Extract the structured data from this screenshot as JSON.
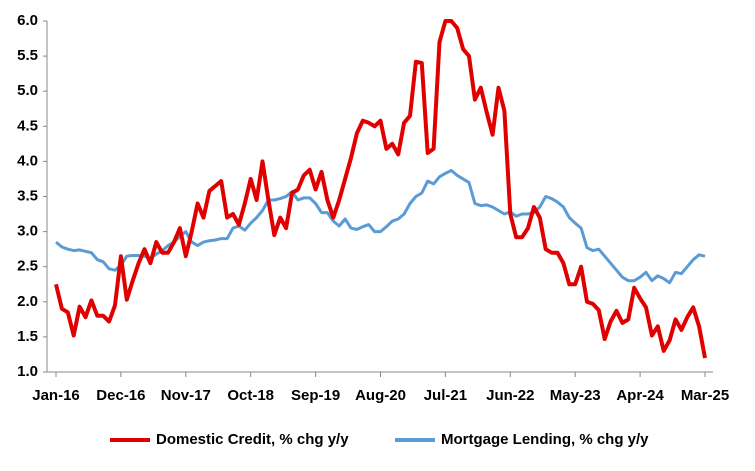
{
  "chart_data": {
    "type": "line",
    "categories": [
      "Jan-16",
      null,
      null,
      null,
      null,
      null,
      null,
      null,
      null,
      null,
      null,
      "Dec-16",
      null,
      null,
      null,
      null,
      null,
      null,
      null,
      null,
      null,
      null,
      "Nov-17",
      null,
      null,
      null,
      null,
      null,
      null,
      null,
      null,
      null,
      null,
      "Oct-18",
      null,
      null,
      null,
      null,
      null,
      null,
      null,
      null,
      null,
      null,
      "Sep-19",
      null,
      null,
      null,
      null,
      null,
      null,
      null,
      null,
      null,
      null,
      "Aug-20",
      null,
      null,
      null,
      null,
      null,
      null,
      null,
      null,
      null,
      null,
      "Jul-21",
      null,
      null,
      null,
      null,
      null,
      null,
      null,
      null,
      null,
      null,
      "Jun-22",
      null,
      null,
      null,
      null,
      null,
      null,
      null,
      null,
      null,
      null,
      "May-23",
      null,
      null,
      null,
      null,
      null,
      null,
      null,
      null,
      null,
      null,
      "Apr-24",
      null,
      null,
      null,
      null,
      null,
      null,
      null,
      null,
      null,
      null,
      "Mar-25"
    ],
    "series": [
      {
        "name": "Domestic Credit, % chg y/y",
        "color": "#e00000",
        "values": [
          2.25,
          1.9,
          1.85,
          1.52,
          1.93,
          1.78,
          2.02,
          1.8,
          1.8,
          1.72,
          1.95,
          2.65,
          2.03,
          2.3,
          2.55,
          2.75,
          2.55,
          2.85,
          2.7,
          2.7,
          2.85,
          3.05,
          2.65,
          3.0,
          3.4,
          3.2,
          3.58,
          3.65,
          3.72,
          3.2,
          3.25,
          3.1,
          3.4,
          3.75,
          3.45,
          4.0,
          3.45,
          2.95,
          3.2,
          3.05,
          3.55,
          3.6,
          3.8,
          3.88,
          3.6,
          3.85,
          3.45,
          3.2,
          3.45,
          3.75,
          4.05,
          4.4,
          4.58,
          4.55,
          4.5,
          4.58,
          4.18,
          4.25,
          4.1,
          4.55,
          4.65,
          5.42,
          5.4,
          4.12,
          4.18,
          5.7,
          6.0,
          6.0,
          5.9,
          5.6,
          5.5,
          4.88,
          5.05,
          4.7,
          4.38,
          5.05,
          4.72,
          3.25,
          2.92,
          2.92,
          3.05,
          3.35,
          3.2,
          2.75,
          2.7,
          2.7,
          2.55,
          2.25,
          2.25,
          2.5,
          2.0,
          1.97,
          1.88,
          1.47,
          1.72,
          1.87,
          1.7,
          1.75,
          2.2,
          2.05,
          1.92,
          1.52,
          1.65,
          1.3,
          1.45,
          1.75,
          1.6,
          1.78,
          1.92,
          1.65,
          1.2
        ]
      },
      {
        "name": "Mortgage Lending, % chg y/y",
        "color": "#5b9bd5",
        "values": [
          2.85,
          2.78,
          2.75,
          2.73,
          2.74,
          2.72,
          2.7,
          2.6,
          2.57,
          2.47,
          2.45,
          2.52,
          2.65,
          2.66,
          2.66,
          2.65,
          2.62,
          2.68,
          2.73,
          2.8,
          2.85,
          2.93,
          3.0,
          2.85,
          2.8,
          2.85,
          2.87,
          2.88,
          2.9,
          2.9,
          3.05,
          3.08,
          3.02,
          3.12,
          3.2,
          3.3,
          3.45,
          3.45,
          3.47,
          3.5,
          3.57,
          3.45,
          3.48,
          3.48,
          3.4,
          3.27,
          3.27,
          3.15,
          3.08,
          3.18,
          3.05,
          3.03,
          3.07,
          3.1,
          3.0,
          3.0,
          3.07,
          3.15,
          3.18,
          3.25,
          3.4,
          3.5,
          3.55,
          3.72,
          3.68,
          3.78,
          3.83,
          3.87,
          3.8,
          3.75,
          3.7,
          3.4,
          3.37,
          3.38,
          3.35,
          3.3,
          3.25,
          3.28,
          3.22,
          3.25,
          3.25,
          3.27,
          3.35,
          3.5,
          3.47,
          3.42,
          3.35,
          3.2,
          3.12,
          3.05,
          2.77,
          2.73,
          2.75,
          2.65,
          2.55,
          2.45,
          2.35,
          2.3,
          2.3,
          2.35,
          2.42,
          2.3,
          2.37,
          2.33,
          2.27,
          2.42,
          2.4,
          2.5,
          2.6,
          2.67,
          2.65
        ]
      }
    ],
    "ylim": [
      1,
      6
    ],
    "yticks": [
      {
        "value": 1,
        "label": "1.0"
      },
      1.5,
      {
        "value": 2,
        "label": "2.0"
      },
      2.5,
      {
        "value": 3,
        "label": "3.0"
      },
      3.5,
      {
        "value": 4,
        "label": "4.0"
      },
      4.5,
      {
        "value": 5,
        "label": "5.0"
      },
      5.5,
      {
        "value": 6,
        "label": "6.0"
      }
    ],
    "grid": false
  }
}
